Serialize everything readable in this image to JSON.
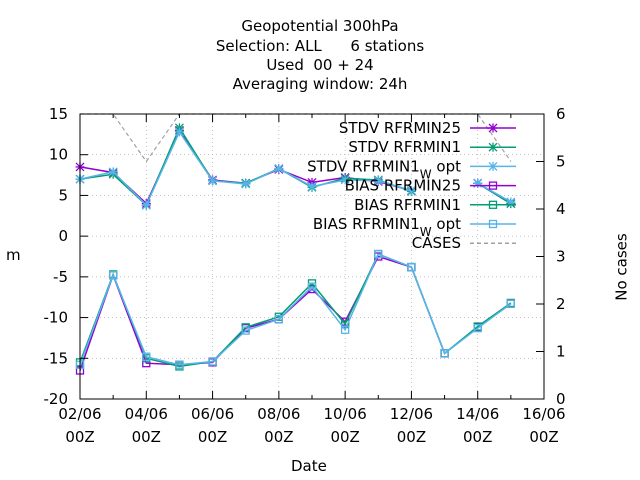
{
  "titles": {
    "line1": "Geopotential 300hPa",
    "line2": "Selection: ALL      6 stations",
    "line3": "Used  00 + 24",
    "line4": "Averaging window: 24h"
  },
  "chart_data": {
    "type": "line",
    "xlabel": "Date",
    "ylabel": "m",
    "y2label": "No cases",
    "x_ticks": [
      "02/06\n00Z",
      "04/06\n00Z",
      "06/06\n00Z",
      "08/06\n00Z",
      "10/06\n00Z",
      "12/06\n00Z",
      "14/06\n00Z",
      "16/06\n00Z"
    ],
    "x": [
      "02/06",
      "03/06",
      "04/06",
      "05/06",
      "06/06",
      "07/06",
      "08/06",
      "09/06",
      "10/06",
      "11/06",
      "12/06",
      "13/06",
      "14/06",
      "15/06"
    ],
    "ylim": [
      -20,
      15
    ],
    "y_ticks": [
      -20,
      -15,
      -10,
      -5,
      0,
      5,
      10,
      15
    ],
    "y2lim": [
      0,
      6
    ],
    "y2_ticks": [
      0,
      1,
      2,
      3,
      4,
      5,
      6
    ],
    "grid": true,
    "legend_position": "top-right",
    "series": [
      {
        "name": "STDV RFRMIN25",
        "color": "#9400d3",
        "marker": "cross",
        "axis": "y",
        "values": [
          8.5,
          7.8,
          4.0,
          13.0,
          6.9,
          6.5,
          8.2,
          6.6,
          7.2,
          6.7,
          5.6,
          null,
          6.5,
          4.0
        ]
      },
      {
        "name": "STDV RFRMIN1",
        "color": "#009e73",
        "marker": "cross",
        "axis": "y",
        "values": [
          7.0,
          7.6,
          3.8,
          13.3,
          6.8,
          6.5,
          8.3,
          6.0,
          7.1,
          6.9,
          5.5,
          null,
          6.5,
          4.0
        ]
      },
      {
        "name": "STDV RFRMIN1_W opt",
        "color": "#56b4e9",
        "marker": "cross",
        "axis": "y",
        "values": [
          7.0,
          7.9,
          3.8,
          12.8,
          6.8,
          6.4,
          8.3,
          6.1,
          6.9,
          6.8,
          5.6,
          null,
          6.5,
          4.2
        ]
      },
      {
        "name": "BIAS RFRMIN25",
        "color": "#9400d3",
        "marker": "square",
        "axis": "y",
        "values": [
          -16.5,
          -4.8,
          -15.6,
          -15.8,
          -15.5,
          -11.3,
          -10.2,
          -6.5,
          -10.5,
          -2.5,
          -3.8,
          -14.4,
          -11.2,
          -8.3
        ]
      },
      {
        "name": "BIAS RFRMIN1",
        "color": "#009e73",
        "marker": "square",
        "axis": "y",
        "values": [
          -15.5,
          -4.7,
          -15.0,
          -16.0,
          -15.4,
          -11.2,
          -9.9,
          -5.8,
          -10.8,
          -2.2,
          -3.8,
          -14.4,
          -11.1,
          -8.2
        ]
      },
      {
        "name": "BIAS RFRMIN1_W opt",
        "color": "#56b4e9",
        "marker": "square",
        "axis": "y",
        "values": [
          -15.8,
          -4.8,
          -14.8,
          -15.8,
          -15.4,
          -11.6,
          -10.2,
          -6.2,
          -11.5,
          -2.2,
          -3.8,
          -14.4,
          -11.3,
          -8.3
        ]
      },
      {
        "name": "CASES",
        "color": "#a0a0a0",
        "marker": "none",
        "dashed": true,
        "axis": "y2",
        "values": [
          6,
          6,
          5,
          6,
          6,
          6,
          6,
          6,
          6,
          6,
          6,
          6,
          6,
          5
        ]
      }
    ],
    "legend": [
      {
        "label": "STDV RFRMIN25",
        "sub": "",
        "suffix": ""
      },
      {
        "label": "STDV RFRMIN1",
        "sub": "",
        "suffix": ""
      },
      {
        "label": "STDV RFRMIN1",
        "sub": "W",
        "suffix": " opt"
      },
      {
        "label": "BIAS RFRMIN25",
        "sub": "",
        "suffix": ""
      },
      {
        "label": "BIAS RFRMIN1",
        "sub": "",
        "suffix": ""
      },
      {
        "label": "BIAS RFRMIN1",
        "sub": "W",
        "suffix": " opt"
      },
      {
        "label": "CASES",
        "sub": "",
        "suffix": ""
      }
    ]
  }
}
